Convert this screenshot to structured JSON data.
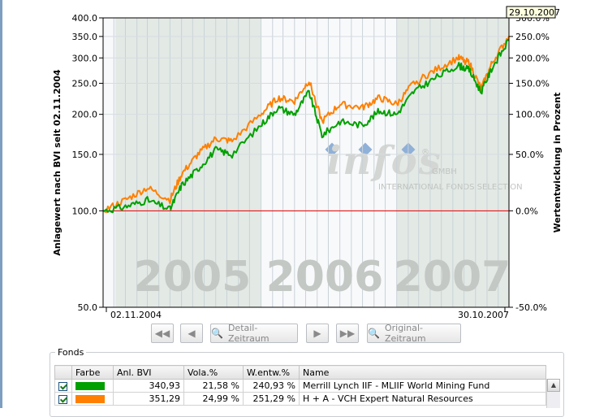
{
  "chart_data": {
    "type": "line",
    "left_axis_title": "Anlagewert nach BVI seit 02.11.2004",
    "right_axis_title": "Wertentwicklung in Prozent",
    "left_ticks": [
      {
        "value": 50,
        "label": "50.0"
      },
      {
        "value": 100,
        "label": "100.0"
      },
      {
        "value": 150,
        "label": "150.0"
      },
      {
        "value": 200,
        "label": "200.0"
      },
      {
        "value": 250,
        "label": "250.0"
      },
      {
        "value": 300,
        "label": "300.0"
      },
      {
        "value": 350,
        "label": "350.0"
      },
      {
        "value": 400,
        "label": "400.0"
      }
    ],
    "right_ticks": [
      {
        "value": 50,
        "label": "-50.0%"
      },
      {
        "value": 100,
        "label": "0.0%"
      },
      {
        "value": 150,
        "label": "50.0%"
      },
      {
        "value": 200,
        "label": "100.0%"
      },
      {
        "value": 250,
        "label": "150.0%"
      },
      {
        "value": 300,
        "label": "200.0%"
      },
      {
        "value": 350,
        "label": "250.0%"
      },
      {
        "value": 400,
        "label": "300.0%"
      }
    ],
    "y_scale": "log",
    "ylim": [
      50,
      400
    ],
    "x_start_label": "02.11.2004",
    "x_end_label": "30.10.2007",
    "tooltip_date": "29.10.2007",
    "baseline_value": 100,
    "years": [
      "2005",
      "2006",
      "2007"
    ],
    "watermark": {
      "brand": "infos",
      "suffix": "GMBH",
      "tagline": "INTERNATIONAL FONDS SELECTION",
      "registered": "®"
    },
    "x_dates": [
      "2004-11-02",
      "2005-01-01",
      "2005-03-01",
      "2005-05-01",
      "2005-06-01",
      "2005-07-15",
      "2005-09-01",
      "2005-10-15",
      "2005-12-31",
      "2006-02-15",
      "2006-04-01",
      "2006-05-10",
      "2006-06-14",
      "2006-08-01",
      "2006-10-01",
      "2006-11-15",
      "2007-01-01",
      "2007-02-15",
      "2007-04-15",
      "2007-06-15",
      "2007-07-15",
      "2007-08-16",
      "2007-09-15",
      "2007-10-30"
    ],
    "series": [
      {
        "name": "Merrill Lynch IIF - MLIIF World Mining Fund",
        "color": "#00a000",
        "values": [
          100,
          103,
          108,
          101,
          120,
          135,
          155,
          150,
          185,
          210,
          200,
          235,
          172,
          190,
          185,
          205,
          200,
          235,
          260,
          285,
          275,
          235,
          280,
          340.93
        ]
      },
      {
        "name": "H + A - VCH Expert Natural Resources",
        "color": "#ff8000",
        "values": [
          100,
          108,
          118,
          108,
          130,
          150,
          168,
          165,
          200,
          225,
          220,
          255,
          190,
          215,
          210,
          225,
          215,
          250,
          275,
          300,
          290,
          240,
          290,
          351.29
        ]
      }
    ]
  },
  "navigation": {
    "detail_label": "Detail-Zeitraum",
    "original_label": "Original-Zeitraum"
  },
  "fonds": {
    "group_title": "Fonds",
    "headers": [
      "Farbe",
      "Anl. BVI",
      "Vola.%",
      "W.entw.%",
      "Name"
    ],
    "rows": [
      {
        "color": "#00a000",
        "anl_bvi": "340,93",
        "vola": "21,58 %",
        "wentw": "240,93 %",
        "name": "Merrill Lynch IIF - MLIIF World Mining Fund"
      },
      {
        "color": "#ff8000",
        "anl_bvi": "351,29",
        "vola": "24,99 %",
        "wentw": "251,29 %",
        "name": "H + A - VCH Expert Natural Resources"
      }
    ]
  }
}
